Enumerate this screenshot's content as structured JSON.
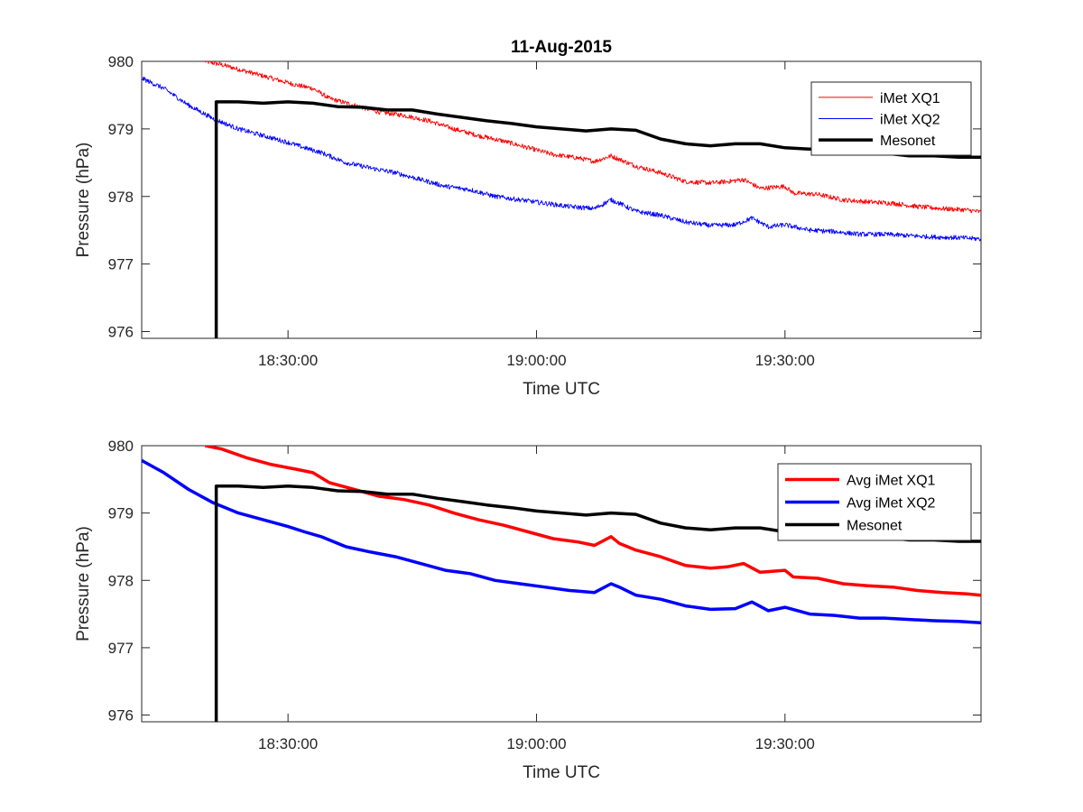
{
  "figure": {
    "title": "11-Aug-2015",
    "background": "#ffffff"
  },
  "chart_data": [
    {
      "type": "line",
      "title": "11-Aug-2015",
      "xlabel": "Time UTC",
      "ylabel": "Pressure (hPa)",
      "xlim": [
        "18:12:20",
        "19:53:40"
      ],
      "ylim": [
        975.9,
        980
      ],
      "x_ticks": [
        "18:30:00",
        "19:00:00",
        "19:30:00"
      ],
      "y_ticks": [
        976,
        977,
        978,
        979,
        980
      ],
      "grid": false,
      "legend_position": "top-right",
      "series": [
        {
          "name": "iMet XQ1",
          "color": "#ff0000",
          "style": "thin-noisy",
          "x": [
            "18:20:00",
            "18:22:00",
            "18:25:00",
            "18:28:00",
            "18:31:00",
            "18:33:00",
            "18:35:00",
            "18:38:00",
            "18:41:00",
            "18:44:00",
            "18:47:00",
            "18:50:00",
            "18:53:00",
            "18:56:00",
            "18:59:00",
            "19:02:00",
            "19:05:00",
            "19:07:00",
            "19:09:00",
            "19:10:00",
            "19:12:00",
            "19:15:00",
            "19:18:00",
            "19:21:00",
            "19:23:00",
            "19:25:00",
            "19:27:00",
            "19:30:00",
            "19:31:00",
            "19:34:00",
            "19:37:00",
            "19:40:00",
            "19:43:00",
            "19:46:00",
            "19:49:00",
            "19:52:00",
            "19:53:40"
          ],
          "values": [
            980.0,
            979.95,
            979.85,
            979.75,
            979.65,
            979.6,
            979.45,
            979.35,
            979.25,
            979.2,
            979.12,
            979.0,
            978.9,
            978.82,
            978.72,
            978.62,
            978.57,
            978.52,
            978.6,
            978.55,
            978.45,
            978.35,
            978.22,
            978.2,
            978.22,
            978.25,
            978.12,
            978.15,
            978.05,
            978.03,
            977.95,
            977.92,
            977.9,
            977.85,
            977.82,
            977.8,
            977.77
          ]
        },
        {
          "name": "iMet XQ2",
          "color": "#0000ff",
          "style": "thin-noisy",
          "x": [
            "18:12:20",
            "18:15:00",
            "18:18:00",
            "18:21:00",
            "18:24:00",
            "18:27:00",
            "18:30:00",
            "18:32:00",
            "18:34:00",
            "18:37:00",
            "18:40:00",
            "18:43:00",
            "18:46:00",
            "18:49:00",
            "18:52:00",
            "18:55:00",
            "18:58:00",
            "19:01:00",
            "19:04:00",
            "19:07:00",
            "19:09:00",
            "19:10:00",
            "19:12:00",
            "19:15:00",
            "19:18:00",
            "19:21:00",
            "19:24:00",
            "19:26:00",
            "19:28:00",
            "19:30:00",
            "19:33:00",
            "19:36:00",
            "19:39:00",
            "19:42:00",
            "19:45:00",
            "19:48:00",
            "19:51:00",
            "19:53:40"
          ],
          "values": [
            979.75,
            979.6,
            979.35,
            979.15,
            979.0,
            978.9,
            978.8,
            978.72,
            978.65,
            978.5,
            978.42,
            978.35,
            978.25,
            978.15,
            978.1,
            978.0,
            977.95,
            977.9,
            977.85,
            977.82,
            977.95,
            977.9,
            977.78,
            977.72,
            977.62,
            977.57,
            977.58,
            977.68,
            977.55,
            977.58,
            977.5,
            977.48,
            977.44,
            977.44,
            977.42,
            977.4,
            977.39,
            977.37
          ]
        },
        {
          "name": "Mesonet",
          "color": "#000000",
          "style": "thick-step",
          "x": [
            "18:21:20",
            "18:21:20",
            "18:24:00",
            "18:27:00",
            "18:30:00",
            "18:33:00",
            "18:36:00",
            "18:39:00",
            "18:42:00",
            "18:45:00",
            "18:48:00",
            "18:51:00",
            "18:54:00",
            "18:57:00",
            "19:00:00",
            "19:03:00",
            "19:06:00",
            "19:09:00",
            "19:12:00",
            "19:15:00",
            "19:18:00",
            "19:21:00",
            "19:24:00",
            "19:27:00",
            "19:30:00",
            "19:33:00",
            "19:36:00",
            "19:39:00",
            "19:42:00",
            "19:45:00",
            "19:48:00",
            "19:51:00",
            "19:53:40"
          ],
          "values": [
            975.9,
            979.4,
            979.4,
            979.38,
            979.4,
            979.38,
            979.33,
            979.32,
            979.28,
            979.28,
            979.22,
            979.17,
            979.12,
            979.08,
            979.03,
            979.0,
            978.97,
            979.0,
            978.98,
            978.85,
            978.78,
            978.75,
            978.78,
            978.78,
            978.72,
            978.7,
            978.68,
            978.68,
            978.64,
            978.6,
            978.6,
            978.58,
            978.58
          ]
        }
      ]
    },
    {
      "type": "line",
      "title": "",
      "xlabel": "Time UTC",
      "ylabel": "Pressure (hPa)",
      "xlim": [
        "18:12:20",
        "19:53:40"
      ],
      "ylim": [
        975.9,
        980
      ],
      "x_ticks": [
        "18:30:00",
        "19:00:00",
        "19:30:00"
      ],
      "y_ticks": [
        976,
        977,
        978,
        979,
        980
      ],
      "grid": false,
      "legend_position": "top-right",
      "series": [
        {
          "name": "Avg iMet XQ1",
          "color": "#ff0000",
          "style": "thick",
          "x": [
            "18:20:00",
            "18:22:00",
            "18:25:00",
            "18:28:00",
            "18:31:00",
            "18:33:00",
            "18:35:00",
            "18:38:00",
            "18:41:00",
            "18:44:00",
            "18:47:00",
            "18:50:00",
            "18:53:00",
            "18:56:00",
            "18:59:00",
            "19:02:00",
            "19:05:00",
            "19:07:00",
            "19:09:00",
            "19:10:00",
            "19:12:00",
            "19:15:00",
            "19:18:00",
            "19:21:00",
            "19:23:00",
            "19:25:00",
            "19:27:00",
            "19:30:00",
            "19:31:00",
            "19:34:00",
            "19:37:00",
            "19:40:00",
            "19:43:00",
            "19:46:00",
            "19:49:00",
            "19:52:00",
            "19:53:40"
          ],
          "values": [
            980.0,
            979.95,
            979.82,
            979.72,
            979.65,
            979.6,
            979.45,
            979.35,
            979.25,
            979.2,
            979.12,
            979.0,
            978.9,
            978.82,
            978.72,
            978.62,
            978.57,
            978.52,
            978.65,
            978.55,
            978.45,
            978.35,
            978.22,
            978.18,
            978.2,
            978.25,
            978.12,
            978.15,
            978.05,
            978.03,
            977.95,
            977.92,
            977.9,
            977.85,
            977.82,
            977.8,
            977.78
          ]
        },
        {
          "name": "Avg iMet XQ2",
          "color": "#0000ff",
          "style": "thick",
          "x": [
            "18:12:20",
            "18:15:00",
            "18:18:00",
            "18:21:00",
            "18:24:00",
            "18:27:00",
            "18:30:00",
            "18:32:00",
            "18:34:00",
            "18:37:00",
            "18:40:00",
            "18:43:00",
            "18:46:00",
            "18:49:00",
            "18:52:00",
            "18:55:00",
            "18:58:00",
            "19:01:00",
            "19:04:00",
            "19:07:00",
            "19:09:00",
            "19:10:00",
            "19:12:00",
            "19:15:00",
            "19:18:00",
            "19:21:00",
            "19:24:00",
            "19:26:00",
            "19:28:00",
            "19:30:00",
            "19:33:00",
            "19:36:00",
            "19:39:00",
            "19:42:00",
            "19:45:00",
            "19:48:00",
            "19:51:00",
            "19:53:40"
          ],
          "values": [
            979.78,
            979.6,
            979.35,
            979.15,
            979.0,
            978.9,
            978.8,
            978.72,
            978.65,
            978.5,
            978.42,
            978.35,
            978.25,
            978.15,
            978.1,
            978.0,
            977.95,
            977.9,
            977.85,
            977.82,
            977.95,
            977.9,
            977.78,
            977.72,
            977.62,
            977.57,
            977.58,
            977.68,
            977.55,
            977.6,
            977.5,
            977.48,
            977.44,
            977.44,
            977.42,
            977.4,
            977.39,
            977.37
          ]
        },
        {
          "name": "Mesonet",
          "color": "#000000",
          "style": "thick-step",
          "x": [
            "18:21:20",
            "18:21:20",
            "18:24:00",
            "18:27:00",
            "18:30:00",
            "18:33:00",
            "18:36:00",
            "18:39:00",
            "18:42:00",
            "18:45:00",
            "18:48:00",
            "18:51:00",
            "18:54:00",
            "18:57:00",
            "19:00:00",
            "19:03:00",
            "19:06:00",
            "19:09:00",
            "19:12:00",
            "19:15:00",
            "19:18:00",
            "19:21:00",
            "19:24:00",
            "19:27:00",
            "19:30:00",
            "19:33:00",
            "19:36:00",
            "19:39:00",
            "19:42:00",
            "19:45:00",
            "19:48:00",
            "19:51:00",
            "19:53:40"
          ],
          "values": [
            975.9,
            979.4,
            979.4,
            979.38,
            979.4,
            979.38,
            979.33,
            979.32,
            979.28,
            979.28,
            979.22,
            979.17,
            979.12,
            979.08,
            979.03,
            979.0,
            978.97,
            979.0,
            978.98,
            978.85,
            978.78,
            978.75,
            978.78,
            978.78,
            978.72,
            978.7,
            978.68,
            978.68,
            978.64,
            978.6,
            978.6,
            978.58,
            978.58
          ]
        }
      ]
    }
  ]
}
